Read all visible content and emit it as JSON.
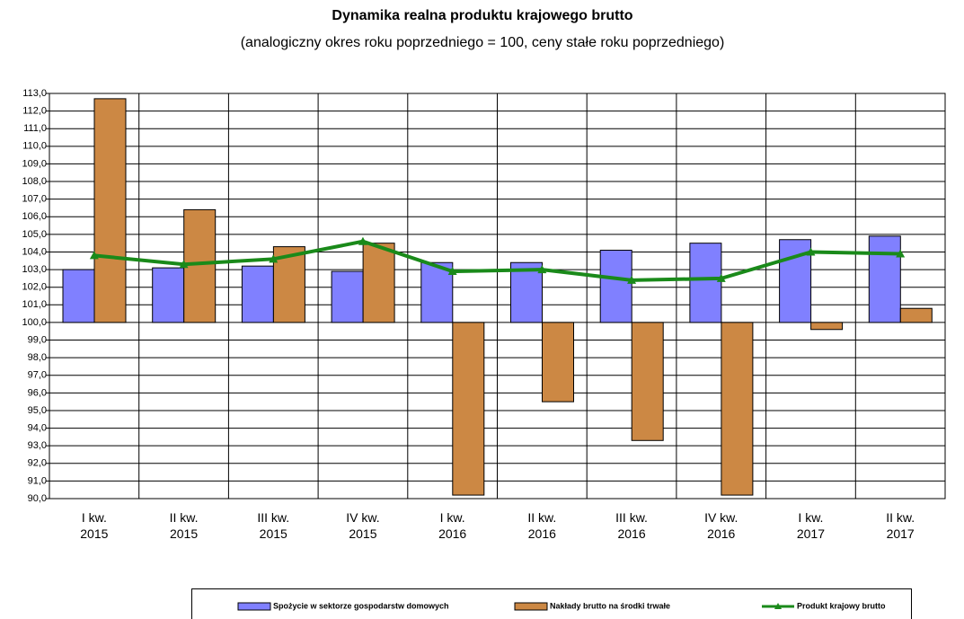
{
  "chart_data": {
    "type": "bar_line",
    "title": "Dynamika realna produktu krajowego brutto",
    "subtitle": "(analogiczny okres roku poprzedniego = 100, ceny stałe roku poprzedniego)",
    "categories": [
      "I kw. 2015",
      "II kw. 2015",
      "III kw. 2015",
      "IV kw. 2015",
      "I kw. 2016",
      "II kw. 2016",
      "III kw. 2016",
      "IV kw. 2016",
      "I kw. 2017",
      "II kw. 2017"
    ],
    "series": [
      {
        "name": "Spożycie w sektorze gospodarstw domowych",
        "type": "bar",
        "color": "#8080ff",
        "values": [
          103.0,
          103.1,
          103.2,
          102.9,
          103.4,
          103.4,
          104.1,
          104.5,
          104.7,
          104.9
        ]
      },
      {
        "name": "Nakłady brutto na środki trwałe",
        "type": "bar",
        "color": "#cc8844",
        "values": [
          112.7,
          106.4,
          104.3,
          104.5,
          90.2,
          95.5,
          93.3,
          90.2,
          99.6,
          100.8
        ]
      },
      {
        "name": "Produkt krajowy brutto",
        "type": "line",
        "color": "#1a8a1a",
        "values": [
          103.8,
          103.3,
          103.6,
          104.6,
          102.9,
          103.0,
          102.4,
          102.5,
          104.0,
          103.9
        ]
      }
    ],
    "x_axis_crossing": 100,
    "ylim": [
      90,
      113
    ],
    "yticks": [
      {
        "value": 90,
        "label": "90,0"
      },
      {
        "value": 91,
        "label": "91,0"
      },
      {
        "value": 92,
        "label": "92,0"
      },
      {
        "value": 93,
        "label": "93,0"
      },
      {
        "value": 94,
        "label": "94,0"
      },
      {
        "value": 95,
        "label": "95,0"
      },
      {
        "value": 96,
        "label": "96,0"
      },
      {
        "value": 97,
        "label": "97,0"
      },
      {
        "value": 98,
        "label": "98,0"
      },
      {
        "value": 99,
        "label": "99,0"
      },
      {
        "value": 100,
        "label": "100,0"
      },
      {
        "value": 101,
        "label": "101,0"
      },
      {
        "value": 102,
        "label": "102,0"
      },
      {
        "value": 103,
        "label": "103,0"
      },
      {
        "value": 104,
        "label": "104,0"
      },
      {
        "value": 105,
        "label": "105,0"
      },
      {
        "value": 106,
        "label": "106,0"
      },
      {
        "value": 107,
        "label": "107,0"
      },
      {
        "value": 108,
        "label": "108,0"
      },
      {
        "value": 109,
        "label": "109,0"
      },
      {
        "value": 110,
        "label": "110,0"
      },
      {
        "value": 111,
        "label": "111,0"
      },
      {
        "value": 112,
        "label": "112,0"
      },
      {
        "value": 113,
        "label": "113,0"
      }
    ],
    "grid": true
  }
}
